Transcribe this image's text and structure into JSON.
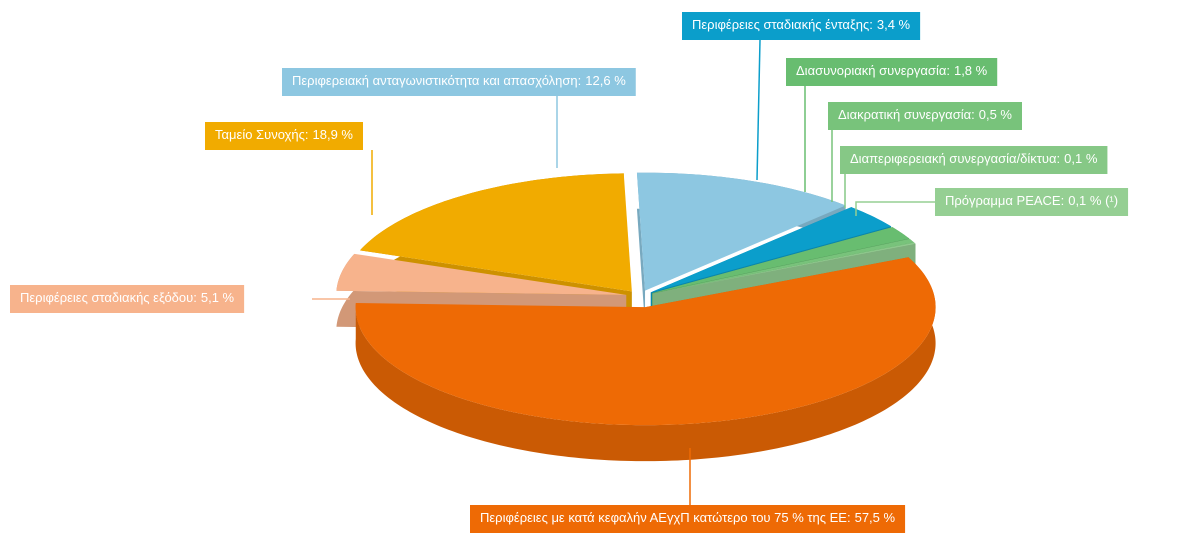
{
  "chart_data": {
    "type": "pie3d",
    "categories": [
      "Περιφέρειες με κατά κεφαλήν ΑΕγχΠ κατώτερο του 75 % της ΕΕ:",
      "Περιφέρειες σταδιακής εξόδου:",
      "Ταμείο Συνοχής:",
      "Περιφερειακή ανταγωνιστικότητα και απασχόληση:",
      "Περιφέρειες σταδιακής ένταξης:",
      "Διασυνοριακή συνεργασία:",
      "Διακρατική συνεργασία:",
      "Διαπεριφερειακή συνεργασία/δίκτυα:",
      "Πρόγραμμα PEACE:"
    ],
    "values": [
      57.5,
      5.1,
      18.9,
      12.6,
      3.4,
      1.8,
      0.5,
      0.1,
      0.1
    ],
    "value_labels": [
      "57,5 %",
      "5,1 %",
      "18,9 %",
      "12,6 %",
      "3,4 %",
      "1,8 %",
      "0,5 %",
      "0,1 %",
      "0,1 % (¹)"
    ],
    "colors": [
      "#ee6a05",
      "#f7b38c",
      "#f1ab00",
      "#8dc7e1",
      "#0b9ecb",
      "#68bd70",
      "#78c37b",
      "#86c886",
      "#95cf93"
    ]
  }
}
